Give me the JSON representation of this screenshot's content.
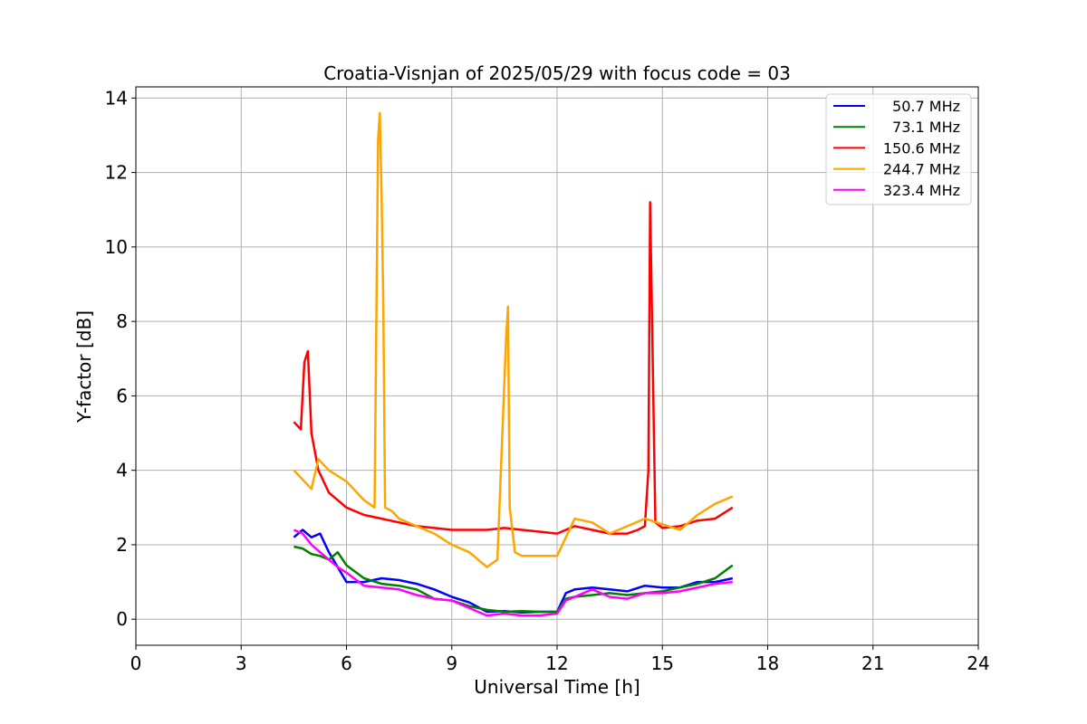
{
  "chart_data": {
    "type": "line",
    "title": "Croatia-Visnjan of 2025/05/29 with focus code = 03",
    "xlabel": "Universal Time [h]",
    "ylabel": "Y-factor [dB]",
    "xlim": [
      0,
      24
    ],
    "ylim": [
      -0.7,
      14.3
    ],
    "xticks": [
      0,
      3,
      6,
      9,
      12,
      15,
      18,
      21,
      24
    ],
    "yticks": [
      0,
      2,
      4,
      6,
      8,
      10,
      12,
      14
    ],
    "grid": true,
    "legend_position": "top-right",
    "series": [
      {
        "name": "50.7 MHz",
        "color": "#0000ff",
        "x": [
          4.5,
          4.75,
          5.0,
          5.25,
          5.5,
          5.75,
          6.0,
          6.5,
          7.0,
          7.5,
          8.0,
          8.5,
          9.0,
          9.5,
          10.0,
          10.5,
          11.0,
          11.5,
          12.0,
          12.25,
          12.5,
          13.0,
          13.5,
          14.0,
          14.5,
          15.0,
          15.5,
          16.0,
          16.5,
          17.0
        ],
        "y": [
          2.2,
          2.4,
          2.2,
          2.3,
          1.8,
          1.4,
          1.0,
          1.0,
          1.1,
          1.05,
          0.95,
          0.8,
          0.6,
          0.45,
          0.2,
          0.22,
          0.18,
          0.2,
          0.2,
          0.7,
          0.8,
          0.85,
          0.8,
          0.75,
          0.9,
          0.85,
          0.85,
          1.0,
          1.0,
          1.1
        ]
      },
      {
        "name": "73.1 MHz",
        "color": "#008000",
        "x": [
          4.5,
          4.75,
          5.0,
          5.25,
          5.5,
          5.75,
          6.0,
          6.5,
          7.0,
          7.5,
          8.0,
          8.5,
          9.0,
          9.5,
          10.0,
          10.5,
          11.0,
          11.5,
          12.0,
          12.25,
          12.5,
          13.0,
          13.5,
          14.0,
          14.5,
          15.0,
          15.5,
          16.0,
          16.5,
          17.0
        ],
        "y": [
          1.95,
          1.9,
          1.75,
          1.7,
          1.6,
          1.8,
          1.45,
          1.1,
          0.95,
          0.9,
          0.8,
          0.55,
          0.5,
          0.35,
          0.25,
          0.2,
          0.22,
          0.2,
          0.2,
          0.55,
          0.6,
          0.65,
          0.7,
          0.65,
          0.7,
          0.75,
          0.85,
          0.95,
          1.1,
          1.45
        ]
      },
      {
        "name": "150.6 MHz",
        "color": "#ff0000",
        "x": [
          4.5,
          4.7,
          4.8,
          4.9,
          5.0,
          5.2,
          5.5,
          6.0,
          6.5,
          7.0,
          7.5,
          8.0,
          8.5,
          9.0,
          9.5,
          10.0,
          10.5,
          11.0,
          11.5,
          12.0,
          12.5,
          13.0,
          13.5,
          14.0,
          14.3,
          14.5,
          14.6,
          14.65,
          14.7,
          14.8,
          15.0,
          15.5,
          16.0,
          16.5,
          17.0
        ],
        "y": [
          5.3,
          5.1,
          6.9,
          7.2,
          5.0,
          4.0,
          3.4,
          3.0,
          2.8,
          2.7,
          2.6,
          2.5,
          2.45,
          2.4,
          2.4,
          2.4,
          2.45,
          2.4,
          2.35,
          2.3,
          2.5,
          2.4,
          2.3,
          2.3,
          2.4,
          2.5,
          4.0,
          11.2,
          8.4,
          2.6,
          2.45,
          2.5,
          2.65,
          2.7,
          3.0
        ]
      },
      {
        "name": "244.7 MHz",
        "color": "#ffa500",
        "x": [
          4.5,
          5.0,
          5.2,
          5.5,
          6.0,
          6.5,
          6.8,
          6.9,
          6.95,
          7.0,
          7.05,
          7.1,
          7.3,
          7.5,
          8.0,
          8.5,
          9.0,
          9.5,
          10.0,
          10.3,
          10.55,
          10.6,
          10.65,
          10.8,
          11.0,
          11.5,
          12.0,
          12.5,
          13.0,
          13.5,
          14.0,
          14.5,
          15.0,
          15.5,
          16.0,
          16.5,
          17.0
        ],
        "y": [
          4.0,
          3.5,
          4.3,
          4.0,
          3.7,
          3.2,
          3.0,
          12.9,
          13.6,
          11.3,
          8.4,
          3.0,
          2.9,
          2.7,
          2.5,
          2.3,
          2.0,
          1.8,
          1.4,
          1.6,
          7.6,
          8.4,
          3.0,
          1.8,
          1.7,
          1.7,
          1.7,
          2.7,
          2.6,
          2.3,
          2.5,
          2.7,
          2.55,
          2.4,
          2.8,
          3.1,
          3.3
        ]
      },
      {
        "name": "323.4 MHz",
        "color": "#ff00ff",
        "x": [
          4.5,
          4.75,
          5.0,
          5.25,
          5.5,
          5.75,
          6.0,
          6.5,
          7.0,
          7.5,
          8.0,
          8.5,
          9.0,
          9.5,
          10.0,
          10.5,
          11.0,
          11.5,
          12.0,
          12.25,
          12.5,
          13.0,
          13.5,
          14.0,
          14.5,
          15.0,
          15.5,
          16.0,
          16.5,
          17.0
        ],
        "y": [
          2.4,
          2.3,
          2.0,
          1.8,
          1.6,
          1.4,
          1.25,
          0.9,
          0.85,
          0.8,
          0.65,
          0.55,
          0.5,
          0.3,
          0.1,
          0.15,
          0.1,
          0.1,
          0.15,
          0.5,
          0.6,
          0.8,
          0.6,
          0.55,
          0.7,
          0.7,
          0.75,
          0.85,
          0.95,
          1.0
        ]
      }
    ]
  }
}
